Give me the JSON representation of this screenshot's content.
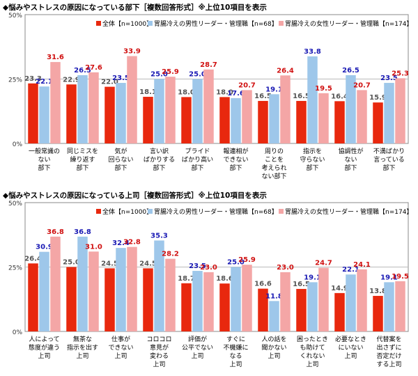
{
  "colors": {
    "s1": "#e8280e",
    "s2": "#9ec7ea",
    "s3": "#f4a6a6",
    "t1": "#555555",
    "t2": "#1a1ab4",
    "t3": "#d01010"
  },
  "chart_data": [
    {
      "type": "bar",
      "title": "◆悩みやストレスの原因になっている部下［複数回答形式］※上位10項目を表示",
      "yticks": [
        "50%",
        "25%",
        "0%"
      ],
      "ylim": [
        0,
        50
      ],
      "legend_position": "top-right",
      "categories": [
        [
          "一般常識の",
          "ない",
          "部下"
        ],
        [
          "同じミスを",
          "繰り返す",
          "部下"
        ],
        [
          "気が",
          "回らない",
          "部下"
        ],
        [
          "言い訳",
          "ばかりする",
          "部下"
        ],
        [
          "プライド",
          "ばかり高い",
          "部下"
        ],
        [
          "報連相が",
          "できない",
          "部下"
        ],
        [
          "周りの",
          "ことを",
          "考えられ",
          "ない部下"
        ],
        [
          "指示を",
          "守らない",
          "部下"
        ],
        [
          "協調性が",
          "ない",
          "部下"
        ],
        [
          "不満ばかり",
          "言っている",
          "部下"
        ]
      ],
      "series": [
        {
          "name": "全体【n=1000】",
          "values": [
            23.3,
            22.9,
            22.0,
            18.1,
            18.0,
            18.0,
            16.5,
            16.5,
            16.4,
            15.9
          ]
        },
        {
          "name": "胃腸冷えの男性リーダー・管理職【n=68】",
          "values": [
            22.1,
            26.5,
            23.5,
            25.0,
            25.0,
            17.6,
            19.1,
            33.8,
            26.5,
            23.5
          ]
        },
        {
          "name": "胃腸冷えの女性リーダー・管理職【n=174】",
          "values": [
            31.6,
            27.6,
            33.9,
            25.9,
            28.7,
            20.7,
            26.4,
            19.5,
            20.7,
            25.3
          ]
        }
      ]
    },
    {
      "type": "bar",
      "title": "◆悩みやストレスの原因になっている上司［複数回答形式］※上位10項目を表示",
      "yticks": [
        "50%",
        "25%",
        "0%"
      ],
      "ylim": [
        0,
        50
      ],
      "legend_position": "top-right",
      "categories": [
        [
          "人によって",
          "態度が違う",
          "上司"
        ],
        [
          "無茶な",
          "指示を出す",
          "上司"
        ],
        [
          "仕事が",
          "できない",
          "上司"
        ],
        [
          "コロコロ",
          "意見が",
          "変わる",
          "上司"
        ],
        [
          "評価が",
          "公平でない",
          "上司"
        ],
        [
          "すぐに",
          "不機嫌に",
          "なる",
          "上司"
        ],
        [
          "人の話を",
          "聞かない",
          "上司"
        ],
        [
          "困ったとき",
          "も助けて",
          "くれない",
          "上司"
        ],
        [
          "必要なとき",
          "にいない",
          "上司"
        ],
        [
          "代替案を",
          "出さずに",
          "否定だけ",
          "する上司"
        ]
      ],
      "series": [
        {
          "name": "全体【n=1000】",
          "values": [
            26.4,
            25.0,
            24.5,
            24.5,
            18.7,
            18.6,
            16.6,
            16.5,
            14.9,
            13.8
          ]
        },
        {
          "name": "胃腸冷えの男性リーダー・管理職【n=68】",
          "values": [
            30.9,
            36.8,
            32.4,
            35.3,
            23.5,
            25.0,
            11.8,
            19.1,
            22.1,
            19.1
          ]
        },
        {
          "name": "胃腸冷えの女性リーダー・管理職【n=174】",
          "values": [
            36.8,
            31.0,
            32.8,
            28.2,
            23.0,
            25.9,
            23.0,
            24.7,
            24.1,
            19.5
          ]
        }
      ]
    }
  ]
}
